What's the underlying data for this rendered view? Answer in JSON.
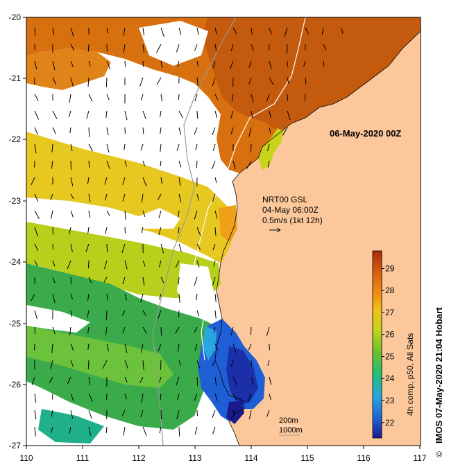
{
  "map": {
    "date_label": "06-May-2020 00Z",
    "x_ticks": [
      "110",
      "111",
      "112",
      "113",
      "114",
      "115",
      "116",
      "117"
    ],
    "y_ticks": [
      "-20",
      "-21",
      "-22",
      "-23",
      "-24",
      "-25",
      "-26",
      "-27"
    ],
    "x_range": [
      110,
      117
    ],
    "y_range": [
      -20,
      -27
    ]
  },
  "current_legend": {
    "line1": "NRT00 GSL",
    "line2": "04-May 06:00Z",
    "line3": "0.5m/s (1kt 12h)"
  },
  "depth_legend": {
    "line1": "200m",
    "line2": "1000m"
  },
  "colorbar": {
    "ticks": [
      "29",
      "28",
      "27",
      "26",
      "25",
      "24",
      "23",
      "22"
    ],
    "tick_values": [
      29,
      28,
      27,
      26,
      25,
      24,
      23,
      22
    ],
    "range": [
      21.3,
      29.8
    ],
    "label": "4h comp, p50, All Sats",
    "colors": [
      "#1a1a8c",
      "#1f5fd6",
      "#27a6e0",
      "#1fc07a",
      "#6cc22a",
      "#c4d41a",
      "#f2c21a",
      "#f08a12",
      "#d05a10",
      "#a82a08"
    ]
  },
  "credit": {
    "text": "IMOS 07-May-2020 21:04 Hobart",
    "symbol": "©"
  },
  "colors": {
    "land": "#fcc89b",
    "warm": "#d8700f",
    "mid": "#d4d620",
    "cool": "#2fa84a",
    "cold": "#1a4fcc"
  }
}
